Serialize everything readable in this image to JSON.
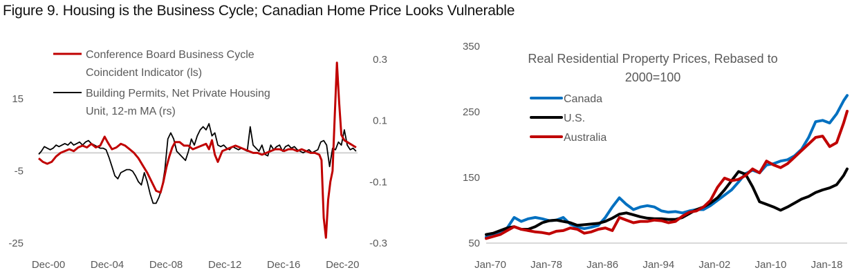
{
  "figure_title": "Figure 9. Housing is the Business Cycle; Canadian Home Price Looks Vulnerable",
  "chart_data": [
    {
      "type": "line",
      "title": "",
      "xlabel": "",
      "ylabel": "",
      "x_tick_labels": [
        "Dec-00",
        "Dec-04",
        "Dec-08",
        "Dec-12",
        "Dec-16",
        "Dec-20"
      ],
      "x_tick_years": [
        2000.92,
        2004.92,
        2008.92,
        2012.92,
        2016.92,
        2020.92
      ],
      "x_range": [
        2000.92,
        2022.6
      ],
      "y_left": {
        "ticks": [
          15,
          -5,
          -25
        ],
        "tick_labels": [
          "15",
          "-5",
          "-25"
        ],
        "ylim": [
          -25,
          15
        ]
      },
      "y_right": {
        "ticks": [
          0.3,
          0.1,
          -0.1,
          -0.3
        ],
        "tick_labels": [
          "0.3",
          "0.1",
          "-0.1",
          "-0.3"
        ],
        "ylim": [
          -0.3,
          0.3
        ]
      },
      "zero_line": true,
      "legend": {
        "placement": "top-left",
        "entries": [
          {
            "label_lines": [
              "Conference Board Business Cycle",
              "Coincident Indicator (ls)"
            ],
            "color": "#C00000"
          },
          {
            "label_lines": [
              "Building Permits, Net Private Housing",
              "Unit, 12-m MA (rs)"
            ],
            "color": "#000000"
          }
        ]
      },
      "series": [
        {
          "name": "Conference Board Business Cycle Coincident Indicator (ls)",
          "axis": "left",
          "color": "#C00000",
          "x": [
            2000.92,
            2001.2,
            2001.5,
            2001.8,
            2002.1,
            2002.4,
            2002.7,
            2003.0,
            2003.3,
            2003.6,
            2003.9,
            2004.2,
            2004.5,
            2004.8,
            2005.1,
            2005.4,
            2005.6,
            2005.9,
            2006.2,
            2006.5,
            2006.8,
            2007.1,
            2007.4,
            2007.7,
            2008.0,
            2008.3,
            2008.6,
            2008.9,
            2009.2,
            2009.4,
            2009.6,
            2009.8,
            2010.0,
            2010.2,
            2010.5,
            2010.8,
            2011.1,
            2011.4,
            2011.7,
            2012.0,
            2012.3,
            2012.5,
            2012.7,
            2012.9,
            2013.1,
            2013.4,
            2013.7,
            2014.0,
            2014.3,
            2014.6,
            2014.9,
            2015.2,
            2015.5,
            2015.8,
            2016.1,
            2016.4,
            2016.7,
            2017.0,
            2017.3,
            2017.6,
            2017.9,
            2018.2,
            2018.5,
            2018.8,
            2019.1,
            2019.4,
            2019.7,
            2020.0,
            2020.15,
            2020.3,
            2020.45,
            2020.6,
            2020.75,
            2020.9,
            2021.05,
            2021.2,
            2021.35,
            2021.5,
            2021.7,
            2021.9,
            2022.1,
            2022.3,
            2022.5
          ],
          "values": [
            -1.5,
            -2.5,
            -3.0,
            -2.5,
            -1.0,
            0.0,
            0.5,
            1.0,
            0.5,
            1.5,
            2.0,
            1.5,
            2.5,
            1.5,
            2.0,
            4.5,
            3.0,
            1.0,
            1.5,
            2.5,
            2.0,
            1.0,
            0.0,
            -1.5,
            -3.5,
            -5.5,
            -8.0,
            -10.5,
            -11.0,
            -8.0,
            -4.0,
            -1.0,
            1.5,
            3.0,
            3.0,
            2.0,
            2.0,
            1.0,
            1.5,
            2.0,
            2.5,
            1.0,
            3.5,
            -0.5,
            -2.5,
            0.5,
            1.0,
            1.5,
            2.0,
            1.5,
            1.0,
            0.5,
            0.0,
            0.0,
            -0.5,
            0.0,
            0.5,
            1.0,
            1.0,
            0.5,
            1.0,
            1.0,
            0.5,
            1.0,
            0.5,
            0.0,
            0.0,
            -0.5,
            -2.0,
            -18.0,
            -23.5,
            -13.0,
            -8.0,
            -5.0,
            10.0,
            25.0,
            14.0,
            5.0,
            3.5,
            3.0,
            2.5,
            2.0,
            1.5
          ]
        },
        {
          "name": "Building Permits, Net Private Housing Unit, 12-m MA (rs)",
          "axis": "right",
          "color": "#000000",
          "x": [
            2000.92,
            2001.1,
            2001.3,
            2001.5,
            2001.7,
            2001.9,
            2002.1,
            2002.3,
            2002.5,
            2002.7,
            2002.9,
            2003.1,
            2003.3,
            2003.5,
            2003.7,
            2003.9,
            2004.1,
            2004.3,
            2004.5,
            2004.7,
            2004.9,
            2005.1,
            2005.3,
            2005.5,
            2005.7,
            2005.9,
            2006.1,
            2006.3,
            2006.5,
            2006.7,
            2006.9,
            2007.1,
            2007.3,
            2007.5,
            2007.7,
            2007.9,
            2008.1,
            2008.3,
            2008.5,
            2008.7,
            2008.9,
            2009.1,
            2009.3,
            2009.5,
            2009.7,
            2009.9,
            2010.1,
            2010.3,
            2010.5,
            2010.7,
            2010.9,
            2011.1,
            2011.3,
            2011.5,
            2011.7,
            2011.9,
            2012.1,
            2012.3,
            2012.5,
            2012.7,
            2012.9,
            2013.1,
            2013.3,
            2013.5,
            2013.7,
            2013.9,
            2014.1,
            2014.3,
            2014.5,
            2014.7,
            2014.9,
            2015.1,
            2015.3,
            2015.5,
            2015.7,
            2015.9,
            2016.1,
            2016.3,
            2016.5,
            2016.7,
            2016.9,
            2017.1,
            2017.3,
            2017.5,
            2017.7,
            2017.9,
            2018.1,
            2018.3,
            2018.5,
            2018.7,
            2018.9,
            2019.1,
            2019.3,
            2019.5,
            2019.7,
            2019.9,
            2020.1,
            2020.3,
            2020.5,
            2020.7,
            2020.9,
            2021.1,
            2021.3,
            2021.5,
            2021.7,
            2021.9,
            2022.1,
            2022.3,
            2022.5
          ],
          "values": [
            -0.01,
            0.0,
            0.015,
            0.01,
            0.005,
            0.01,
            0.02,
            0.015,
            0.02,
            0.025,
            0.02,
            0.03,
            0.02,
            0.025,
            0.03,
            0.02,
            0.03,
            0.035,
            0.025,
            0.02,
            0.015,
            0.01,
            0.01,
            0.005,
            -0.02,
            -0.05,
            -0.08,
            -0.09,
            -0.07,
            -0.065,
            -0.06,
            -0.06,
            -0.065,
            -0.08,
            -0.1,
            -0.11,
            -0.07,
            -0.1,
            -0.14,
            -0.17,
            -0.17,
            -0.15,
            -0.12,
            -0.06,
            0.04,
            0.06,
            0.04,
            0.0,
            -0.01,
            -0.02,
            -0.03,
            0.0,
            0.04,
            0.02,
            0.05,
            0.07,
            0.08,
            0.07,
            0.09,
            0.05,
            0.06,
            0.02,
            0.015,
            0.02,
            0.01,
            0.005,
            0.015,
            0.01,
            0.005,
            0.01,
            0.005,
            0.0,
            0.08,
            0.02,
            0.01,
            0.0,
            0.02,
            -0.01,
            -0.015,
            0.02,
            0.005,
            0.015,
            0.02,
            0.0,
            0.015,
            0.02,
            0.01,
            0.015,
            0.005,
            0.0,
            -0.005,
            0.0,
            0.005,
            -0.005,
            0.0,
            0.005,
            0.03,
            0.035,
            0.02,
            -0.05,
            0.01,
            0.005,
            0.03,
            0.02,
            0.07,
            0.02,
            0.005,
            0.01,
            0.0
          ]
        }
      ]
    },
    {
      "type": "line",
      "title": "Real Residential Property Prices, Rebased to 2000=100",
      "title_lines": [
        "Real Residential Property Prices, Rebased to",
        "2000=100"
      ],
      "xlabel": "",
      "ylabel": "",
      "x_tick_labels": [
        "Jan-70",
        "Jan-78",
        "Jan-86",
        "Jan-94",
        "Jan-02",
        "Jan-10",
        "Jan-18"
      ],
      "x_tick_years": [
        1970,
        1978,
        1986,
        1994,
        2002,
        2010,
        2018
      ],
      "x_range": [
        1970,
        2021.5
      ],
      "y_ticks": [
        350,
        250,
        150,
        50
      ],
      "y_tick_labels": [
        "350",
        "250",
        "150",
        "50"
      ],
      "ylim": [
        50,
        350
      ],
      "grid": false,
      "legend": {
        "placement": "top-left",
        "entries": [
          {
            "label": "Canada",
            "color": "#0070C0"
          },
          {
            "label": "U.S.",
            "color": "#000000"
          },
          {
            "label": "Australia",
            "color": "#C00000"
          }
        ]
      },
      "series": [
        {
          "name": "Canada",
          "color": "#0070C0",
          "x": [
            1970,
            1971,
            1972,
            1973,
            1974,
            1975,
            1976,
            1977,
            1978,
            1979,
            1980,
            1981,
            1982,
            1983,
            1984,
            1985,
            1986,
            1987,
            1988,
            1989,
            1990,
            1991,
            1992,
            1993,
            1994,
            1995,
            1996,
            1997,
            1998,
            1999,
            2000,
            2001,
            2002,
            2003,
            2004,
            2005,
            2006,
            2007,
            2008,
            2009,
            2010,
            2011,
            2012,
            2013,
            2014,
            2015,
            2016,
            2017,
            2018,
            2019,
            2020,
            2021,
            2021.5
          ],
          "values": [
            58,
            62,
            66,
            72,
            88,
            82,
            86,
            88,
            86,
            83,
            84,
            88,
            78,
            73,
            71,
            73,
            76,
            88,
            104,
            118,
            108,
            100,
            104,
            106,
            104,
            98,
            96,
            97,
            95,
            98,
            100,
            100,
            106,
            114,
            122,
            130,
            142,
            155,
            160,
            156,
            168,
            170,
            174,
            176,
            182,
            192,
            210,
            234,
            236,
            232,
            246,
            266,
            274
          ]
        },
        {
          "name": "U.S.",
          "color": "#000000",
          "x": [
            1970,
            1971,
            1972,
            1973,
            1974,
            1975,
            1976,
            1977,
            1978,
            1979,
            1980,
            1981,
            1982,
            1983,
            1984,
            1985,
            1986,
            1987,
            1988,
            1989,
            1990,
            1991,
            1992,
            1993,
            1994,
            1995,
            1996,
            1997,
            1998,
            1999,
            2000,
            2001,
            2002,
            2003,
            2004,
            2005,
            2006,
            2007,
            2008,
            2009,
            2010,
            2011,
            2012,
            2013,
            2014,
            2015,
            2016,
            2017,
            2018,
            2019,
            2020,
            2021,
            2021.5
          ],
          "values": [
            62,
            64,
            68,
            72,
            74,
            70,
            70,
            74,
            80,
            83,
            84,
            82,
            80,
            76,
            77,
            78,
            79,
            82,
            87,
            93,
            95,
            92,
            89,
            87,
            86,
            86,
            85,
            85,
            88,
            94,
            100,
            104,
            110,
            118,
            130,
            144,
            158,
            154,
            135,
            112,
            108,
            104,
            99,
            104,
            110,
            116,
            120,
            126,
            130,
            133,
            138,
            152,
            162
          ]
        },
        {
          "name": "Australia",
          "color": "#C00000",
          "x": [
            1970,
            1971,
            1972,
            1973,
            1974,
            1975,
            1976,
            1977,
            1978,
            1979,
            1980,
            1981,
            1982,
            1983,
            1984,
            1985,
            1986,
            1987,
            1988,
            1989,
            1990,
            1991,
            1992,
            1993,
            1994,
            1995,
            1996,
            1997,
            1998,
            1999,
            2000,
            2001,
            2002,
            2003,
            2004,
            2005,
            2006,
            2007,
            2008,
            2009,
            2010,
            2011,
            2012,
            2013,
            2014,
            2015,
            2016,
            2017,
            2018,
            2019,
            2020,
            2021,
            2021.5
          ],
          "values": [
            56,
            59,
            62,
            68,
            74,
            70,
            68,
            66,
            65,
            63,
            67,
            68,
            72,
            70,
            64,
            66,
            70,
            72,
            68,
            88,
            84,
            80,
            82,
            82,
            84,
            83,
            80,
            82,
            90,
            96,
            98,
            104,
            114,
            134,
            148,
            144,
            146,
            152,
            162,
            156,
            174,
            168,
            164,
            170,
            180,
            190,
            200,
            210,
            212,
            196,
            202,
            232,
            250
          ]
        }
      ]
    }
  ]
}
